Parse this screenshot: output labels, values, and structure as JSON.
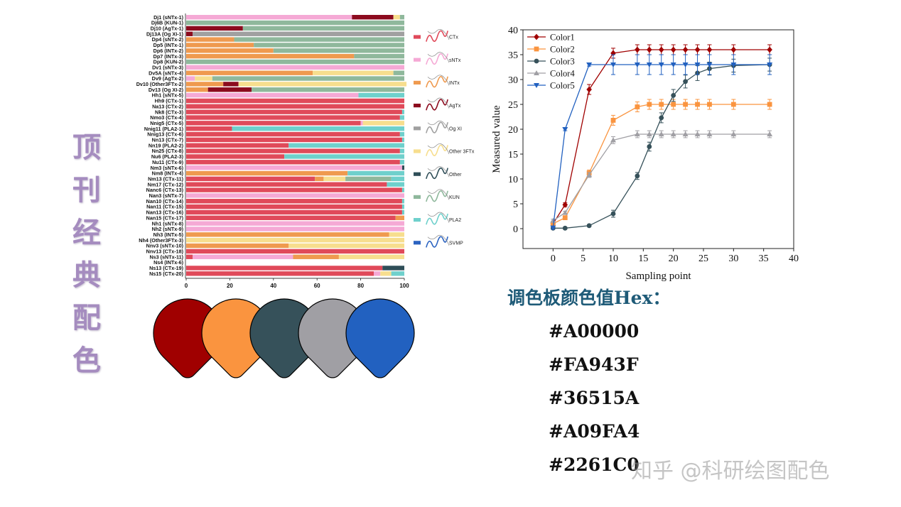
{
  "side_title": [
    "顶",
    "刊",
    "经",
    "典",
    "配",
    "色"
  ],
  "palette_heading": "调色板颜色值Hex：",
  "palette_hex": [
    "#A00000",
    "#FA943F",
    "#36515A",
    "#A09FA4",
    "#2261C0"
  ],
  "watermark": "知乎 @科研绘图配色",
  "chart_data": [
    {
      "type": "bar",
      "orientation": "horizontal",
      "stacked": true,
      "xlabel": "%",
      "xlim": [
        0,
        100
      ],
      "xticks": [
        0,
        20,
        40,
        60,
        80,
        100
      ],
      "legend_position": "right",
      "categories": [
        "Dj1 (sNTx-1)",
        "Dj6B (KUN-1)",
        "Dj10 (AgTx-1)",
        "Dj13A (Og XI-1)",
        "Dp4 (sNTx-2)",
        "Dp5 (INTx-1)",
        "Dp6 (INTx-2)",
        "Dp7 (INTx-3)",
        "Dp8 (KUN-2)",
        "Dv1 (sNTx-3)",
        "Dv5A (sNTx-4)",
        "Dv9 (AgTx-2)",
        "Dv10 (Other3FTx-2)",
        "Dv13 (Og XI-2)",
        "Hh1 (sNTx-5)",
        "Hh9 (CTx-1)",
        "Na13 (CTx-2)",
        "Nk8 (CTx-3)",
        "Nmo3 (CTx-4)",
        "Nnig5 (CTx-5)",
        "Nnig11 (PLA2-1)",
        "Nnig13 (CTx-6)",
        "Nn13 (CTx-7)",
        "Nn19 (PLA2-2)",
        "Nn25 (CTx-8)",
        "Nu6 (PLA2-3)",
        "Nu11 (CTx-9)",
        "Nm3 (sNTx-6)",
        "Nm8 (INTx-4)",
        "Nm13 (CTx-11)",
        "Nm17 (CTx-12)",
        "Nanc6 (CTx-13)",
        "Nan3 (sNTx-7)",
        "Nan10 (CTx-14)",
        "Nan11 (CTx-15)",
        "Nan13 (CTx-16)",
        "Nan15 (CTx-17)",
        "Nh1 (sNTx-8)",
        "Nh2 (sNTx-9)",
        "Nh3 (INTx-5)",
        "Nh4 (Other3FTx-3)",
        "Nnv3 (sNTx-10)",
        "Nnv13 (CTx-18)",
        "Ns3 (sNTx-11)",
        "Ns4 (INTx-6)",
        "Ns13 (CTx-19)",
        "Ns15 (CTx-20)"
      ],
      "series": [
        {
          "name": "CTx",
          "color": "#e04a5a",
          "values": [
            0,
            0,
            0,
            0,
            0,
            0,
            0,
            0,
            0,
            0,
            0,
            0,
            0,
            0,
            0,
            100,
            100,
            99,
            98,
            80,
            21,
            98,
            99,
            47,
            98,
            45,
            98,
            0,
            0,
            59,
            92,
            99,
            0,
            99,
            99,
            99,
            96,
            0,
            0,
            0,
            0,
            0,
            100,
            3,
            0,
            90,
            86
          ]
        },
        {
          "name": "sNTx",
          "color": "#f5a9d5",
          "values": [
            76,
            0,
            0,
            0,
            0,
            0,
            0,
            0,
            0,
            100,
            0,
            4,
            0,
            0,
            79,
            0,
            0,
            0,
            0,
            1,
            0,
            0,
            0,
            0,
            0,
            0,
            0,
            99,
            0,
            0,
            0,
            0,
            100,
            0,
            0,
            0,
            0,
            100,
            100,
            0,
            0,
            0,
            0,
            46,
            0,
            0,
            3
          ]
        },
        {
          "name": "INTx",
          "color": "#ef9a4f",
          "values": [
            0,
            0,
            0,
            0,
            22,
            31,
            40,
            77,
            0,
            0,
            58,
            0,
            17,
            10,
            0,
            0,
            0,
            0,
            0,
            0,
            0,
            0,
            0,
            0,
            0,
            0,
            0,
            0,
            74,
            4,
            0,
            0,
            0,
            0,
            0,
            0,
            4,
            0,
            0,
            93,
            0,
            47,
            0,
            21,
            0,
            0,
            0
          ]
        },
        {
          "name": "AgTx",
          "color": "#8c0b1e",
          "values": [
            19,
            0,
            26,
            3,
            0,
            0,
            0,
            0,
            0,
            0,
            0,
            0,
            7,
            20,
            0,
            0,
            0,
            0,
            0,
            0,
            0,
            0,
            0,
            0,
            0,
            0,
            0,
            0,
            0,
            0,
            0,
            0,
            0,
            0,
            0,
            0,
            0,
            0,
            0,
            0,
            0,
            0,
            0,
            0,
            0,
            0,
            0
          ]
        },
        {
          "name": "Og XI",
          "color": "#a0a0a0",
          "values": [
            0,
            0,
            0,
            97,
            0,
            0,
            0,
            0,
            0,
            0,
            0,
            0,
            0,
            0,
            0,
            0,
            0,
            0,
            0,
            0,
            0,
            0,
            0,
            0,
            0,
            0,
            0,
            0,
            0,
            0,
            0,
            0,
            0,
            0,
            0,
            0,
            0,
            0,
            0,
            0,
            0,
            0,
            0,
            0,
            0,
            0,
            0
          ]
        },
        {
          "name": "Other 3FTx",
          "color": "#f7de8e",
          "values": [
            3,
            0,
            0,
            0,
            0,
            0,
            0,
            0,
            0,
            0,
            37,
            8,
            77,
            0,
            0,
            0,
            0,
            0,
            0,
            19,
            0,
            0,
            0,
            0,
            0,
            0,
            0,
            0,
            0,
            10,
            0,
            0,
            0,
            0,
            0,
            0,
            0,
            0,
            0,
            7,
            100,
            53,
            0,
            30,
            0,
            0,
            5
          ]
        },
        {
          "name": "Other",
          "color": "#2f4e58",
          "values": [
            0,
            0,
            0,
            0,
            0,
            0,
            0,
            0,
            0,
            0,
            0,
            0,
            0,
            0,
            0,
            0,
            0,
            0,
            0,
            0,
            0,
            0,
            0,
            0,
            0,
            0,
            0,
            1,
            0,
            0,
            0,
            0,
            0,
            0,
            0,
            0,
            0,
            0,
            0,
            0,
            0,
            0,
            0,
            0,
            0,
            10,
            0
          ]
        },
        {
          "name": "KUN",
          "color": "#8fb89c",
          "values": [
            2,
            100,
            74,
            0,
            78,
            69,
            60,
            23,
            100,
            0,
            5,
            88,
            0,
            70,
            0,
            0,
            0,
            0,
            0,
            0,
            0,
            0,
            0,
            0,
            0,
            0,
            0,
            0,
            0,
            21,
            0,
            0,
            0,
            0,
            0,
            0,
            0,
            0,
            0,
            0,
            0,
            0,
            0,
            0,
            0,
            0,
            0
          ]
        },
        {
          "name": "PLA2",
          "color": "#6fd0cc",
          "values": [
            0,
            0,
            0,
            0,
            0,
            0,
            0,
            0,
            0,
            0,
            0,
            0,
            0,
            0,
            21,
            0,
            0,
            1,
            2,
            0,
            79,
            2,
            1,
            53,
            2,
            55,
            2,
            0,
            26,
            6,
            8,
            1,
            0,
            1,
            1,
            1,
            0,
            0,
            0,
            0,
            0,
            0,
            0,
            0,
            0,
            0,
            6
          ]
        },
        {
          "name": "SVMP",
          "color": "#2b63c1",
          "values": [
            0,
            0,
            0,
            0,
            0,
            0,
            0,
            0,
            0,
            0,
            0,
            0,
            0,
            0,
            0,
            0,
            0,
            0,
            0,
            0,
            0,
            0,
            0,
            0,
            0,
            0,
            0,
            0,
            0,
            0,
            0,
            0,
            0,
            0,
            0,
            0,
            0,
            0,
            0,
            0,
            0,
            0,
            0,
            0,
            0,
            0,
            0
          ]
        }
      ]
    },
    {
      "type": "line",
      "x": [
        0,
        2,
        6,
        10,
        14,
        16,
        18,
        20,
        22,
        24,
        26,
        30,
        36
      ],
      "xlabel": "Sampling point",
      "ylabel": "Measured value",
      "xlim": [
        -5,
        40
      ],
      "ylim": [
        -4,
        40
      ],
      "xticks": [
        0,
        5,
        10,
        15,
        20,
        25,
        30,
        35,
        40
      ],
      "yticks": [
        0,
        5,
        10,
        15,
        20,
        25,
        30,
        35,
        40
      ],
      "legend_position": "top-left",
      "series": [
        {
          "name": "Color1",
          "color": "#A00000",
          "marker": "diamond",
          "values": [
            1,
            4.8,
            28,
            35.3,
            36,
            36,
            36,
            36,
            36,
            36,
            36,
            36,
            36
          ],
          "error": [
            0.3,
            0.4,
            1.0,
            1.0,
            1.0,
            1.0,
            1.0,
            1.0,
            1.0,
            1.0,
            1.0,
            1.0,
            1.0
          ]
        },
        {
          "name": "Color2",
          "color": "#FA943F",
          "marker": "square",
          "values": [
            1,
            2.2,
            11.2,
            21.8,
            24.5,
            25,
            25,
            25,
            25,
            25,
            25,
            25,
            25
          ],
          "error": [
            0.3,
            0.3,
            0.6,
            1.0,
            1.0,
            1.0,
            1.0,
            1.0,
            1.0,
            1.0,
            1.0,
            1.0,
            1.0
          ]
        },
        {
          "name": "Color3",
          "color": "#36515A",
          "marker": "circle",
          "values": [
            0.1,
            0.1,
            0.6,
            3,
            10.6,
            16.5,
            22.3,
            26.8,
            29.6,
            31.3,
            32.2,
            32.8,
            33
          ],
          "error": [
            0.2,
            0.2,
            0.2,
            0.7,
            0.7,
            0.9,
            1.0,
            1.2,
            1.3,
            1.5,
            1.3,
            1.3,
            1.3
          ]
        },
        {
          "name": "Color4",
          "color": "#A09FA4",
          "marker": "triangle-up",
          "values": [
            1.6,
            3.2,
            10.8,
            17.8,
            19,
            19,
            19,
            19,
            19,
            19,
            19,
            19,
            19
          ],
          "error": [
            0.3,
            0.3,
            0.5,
            0.7,
            0.7,
            0.7,
            0.7,
            0.7,
            0.7,
            0.7,
            0.7,
            0.7,
            0.7
          ]
        },
        {
          "name": "Color5",
          "color": "#2261C0",
          "marker": "triangle-down",
          "values": [
            0.2,
            20,
            33,
            33,
            33,
            33,
            33,
            33,
            33,
            33,
            33,
            33,
            33
          ],
          "error": [
            0.3,
            0.3,
            0.3,
            2.0,
            2.0,
            2.0,
            2.0,
            2.0,
            2.0,
            2.0,
            2.0,
            2.0,
            2.0
          ]
        }
      ]
    }
  ]
}
